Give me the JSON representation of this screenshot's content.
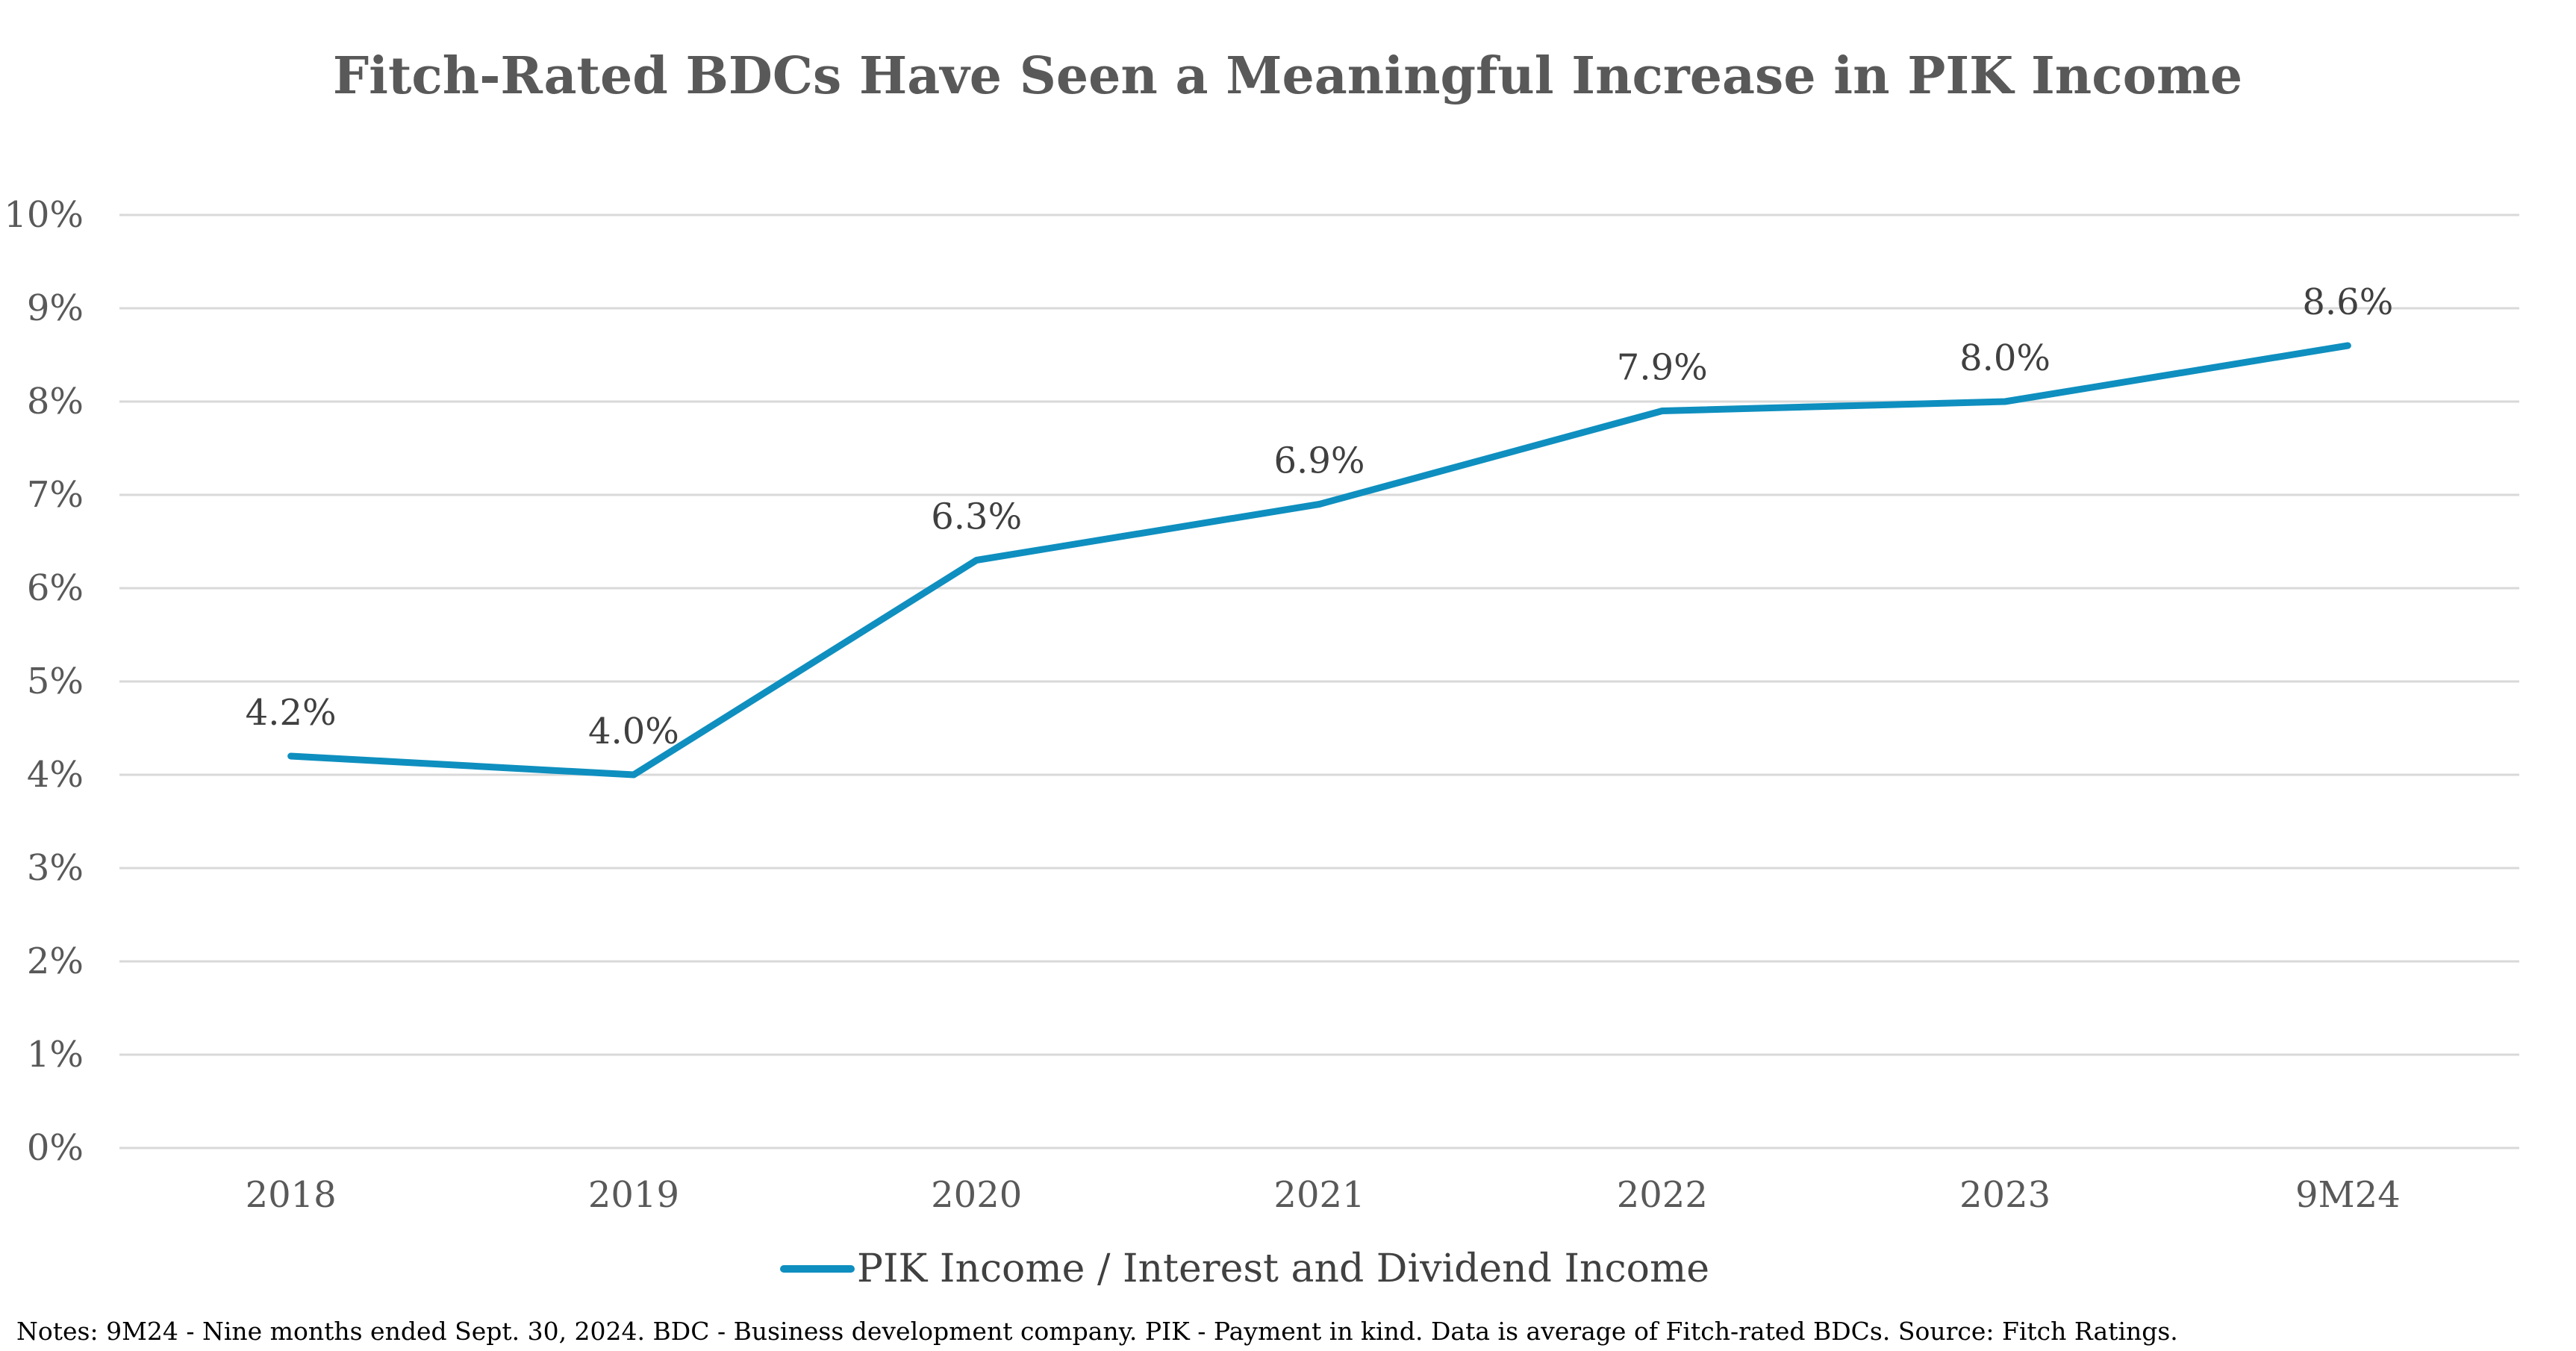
{
  "chart_data": {
    "type": "line",
    "title": "Fitch-Rated BDCs Have Seen a Meaningful Increase in PIK Income",
    "categories": [
      "2018",
      "2019",
      "2020",
      "2021",
      "2022",
      "2023",
      "9M24"
    ],
    "series": [
      {
        "name": "PIK Income / Interest and Dividend Income",
        "values": [
          4.2,
          4.0,
          6.3,
          6.9,
          7.9,
          8.0,
          8.6
        ],
        "labels": [
          "4.2%",
          "4.0%",
          "6.3%",
          "6.9%",
          "7.9%",
          "8.0%",
          "8.6%"
        ],
        "color": "#0e8fbf"
      }
    ],
    "yticks": [
      "0%",
      "1%",
      "2%",
      "3%",
      "4%",
      "5%",
      "6%",
      "7%",
      "8%",
      "9%",
      "10%"
    ],
    "ylim": [
      0,
      10
    ],
    "xlabel": "",
    "ylabel": "",
    "grid": true,
    "legend_position": "bottom-center",
    "notes": "Notes: 9M24 - Nine months ended Sept. 30, 2024. BDC - Business development company. PIK - Payment in kind. Data is average of Fitch-rated BDCs. Source: Fitch Ratings."
  },
  "colors": {
    "line": "#0e8fbf",
    "grid": "#d9d9d9",
    "title": "#595959",
    "tick": "#595959",
    "label": "#404040"
  }
}
